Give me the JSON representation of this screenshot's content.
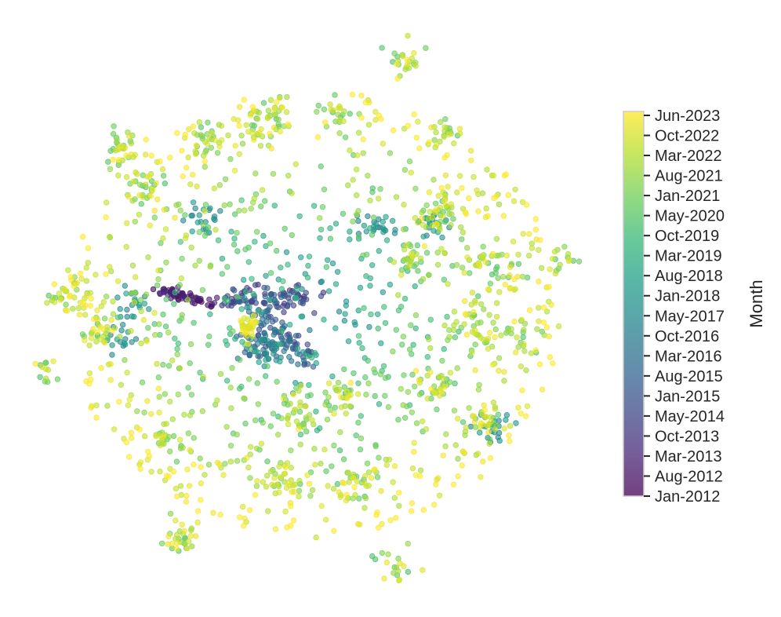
{
  "chart_data": {
    "type": "scatter",
    "title": "",
    "xlabel": "",
    "ylabel": "",
    "axes_visible": false,
    "grid": false,
    "point_alpha": 0.6,
    "colormap": "viridis",
    "colorbar": {
      "label": "Month",
      "placement": "right",
      "ticks": [
        "Jun-2023",
        "Oct-2022",
        "Mar-2022",
        "Aug-2021",
        "Jan-2021",
        "May-2020",
        "Oct-2019",
        "Mar-2019",
        "Aug-2018",
        "Jan-2018",
        "May-2017",
        "Oct-2016",
        "Mar-2016",
        "Aug-2015",
        "Jan-2015",
        "May-2014",
        "Oct-2013",
        "Mar-2013",
        "Aug-2012",
        "Jan-2012"
      ],
      "range": [
        "Jan-2012",
        "Jun-2023"
      ]
    },
    "colormap_stops": [
      "#440154",
      "#482878",
      "#3e4989",
      "#31688e",
      "#26828e",
      "#1f9e89",
      "#35b779",
      "#6ece58",
      "#b5de2b",
      "#fde725"
    ]
  }
}
